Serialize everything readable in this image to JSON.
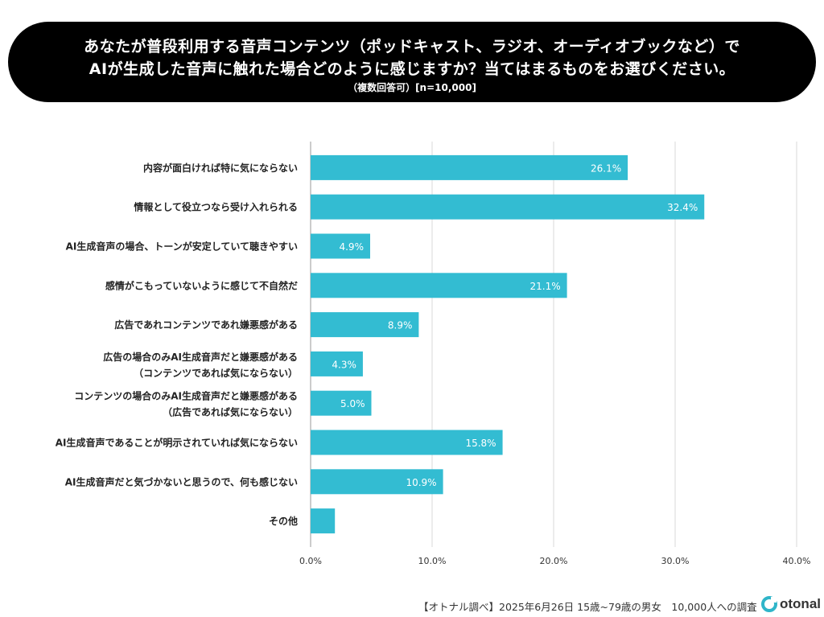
{
  "header": {
    "title_line1": "あなたが普段利用する音声コンテンツ（ポッドキャスト、ラジオ、オーディオブックなど）で",
    "title_line2": "AIが生成した音声に触れた場合どのように感じますか？当てはまるものをお選びください。",
    "subtitle": "（複数回答可）[n=10,000]"
  },
  "chart_data": {
    "type": "bar",
    "orientation": "horizontal",
    "categories": [
      [
        "内容が面白ければ特に気にならない"
      ],
      [
        "情報として役立つなら受け入れられる"
      ],
      [
        "AI生成音声の場合、トーンが安定していて聴きやすい"
      ],
      [
        "感情がこもっていないように感じて不自然だ"
      ],
      [
        "広告であれコンテンツであれ嫌悪感がある"
      ],
      [
        "広告の場合のみAI生成音声だと嫌悪感がある",
        "（コンテンツであれば気にならない）"
      ],
      [
        "コンテンツの場合のみAI生成音声だと嫌悪感がある",
        "（広告であれば気にならない）"
      ],
      [
        "AI生成音声であることが明示されていれば気にならない"
      ],
      [
        "AI生成音声だと気づかないと思うので、何も感じない"
      ],
      [
        "その他"
      ]
    ],
    "values": [
      26.1,
      32.4,
      4.9,
      21.1,
      8.9,
      4.3,
      5.0,
      15.8,
      10.9,
      2.0
    ],
    "value_labels": [
      "26.1%",
      "32.4%",
      "4.9%",
      "21.1%",
      "8.9%",
      "4.3%",
      "5.0%",
      "15.8%",
      "10.9%",
      ""
    ],
    "xlim": [
      0,
      40
    ],
    "xticks": [
      0,
      10,
      20,
      30,
      40
    ],
    "xtick_labels": [
      "0.0%",
      "10.0%",
      "20.0%",
      "30.0%",
      "40.0%"
    ],
    "grid": true,
    "bar_color": "#33bcd2"
  },
  "footer": {
    "note": "【オトナル調べ】2025年6月26日 15歳~79歳の男女　10,000人への調査",
    "logo_text": "otonal"
  },
  "colors": {
    "banner": "#000000",
    "bar": "#33bcd2",
    "grid": "#d9d9d9",
    "logo_accent": "#2fb5c9"
  }
}
